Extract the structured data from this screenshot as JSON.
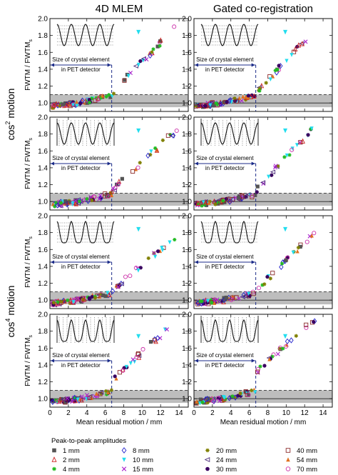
{
  "figure": {
    "column_titles": [
      "4D MLEM",
      "Gated co-registration"
    ],
    "row_labels": [
      {
        "base": "cos",
        "sup": "2",
        "word": "motion"
      },
      {
        "base": "cos",
        "sup": "4",
        "word": "motion"
      }
    ],
    "ylabel": {
      "main": "FWTM",
      "sep": " / ",
      "main2": "FWTM",
      "sub": "s"
    },
    "xlabel": "Mean residual motion / mm",
    "annotation": {
      "line1": "Size of crystal element",
      "line2": "in PET detector"
    },
    "xlim": [
      0,
      15
    ],
    "ylim": [
      0.9,
      2.0
    ],
    "xticks": [
      "0",
      "2",
      "4",
      "6",
      "8",
      "10",
      "12",
      "14"
    ],
    "yticks": [
      "1.0",
      "1.2",
      "1.4",
      "1.6",
      "1.8",
      "2.0"
    ],
    "legend_title": "Peak-to-peak amplitudes"
  },
  "chart_data": {
    "type": "scatter",
    "grid": false,
    "xlabel": "Mean residual motion / mm",
    "ylabel": "FWTM / FWTMs",
    "xlim": [
      0,
      15
    ],
    "ylim": [
      0.9,
      2.0
    ],
    "shaded_band": [
      0.95,
      1.1
    ],
    "reference_lines": {
      "y": [
        1.0,
        1.1
      ],
      "x_dashed": 6.7,
      "y_dashed": 1.45
    },
    "legend_position": "bottom",
    "series": [
      {
        "name": "1 mm",
        "marker": "square-filled",
        "color": "#555555"
      },
      {
        "name": "2 mm",
        "marker": "triangle-open",
        "color": "#cc2222"
      },
      {
        "name": "4 mm",
        "marker": "star",
        "color": "#22bb22"
      },
      {
        "name": "8 mm",
        "marker": "diamond-open",
        "color": "#2222cc"
      },
      {
        "name": "10 mm",
        "marker": "triangle-down",
        "color": "#22ddee"
      },
      {
        "name": "15 mm",
        "marker": "cross",
        "color": "#aa22cc"
      },
      {
        "name": "20 mm",
        "marker": "star",
        "color": "#808000"
      },
      {
        "name": "24 mm",
        "marker": "triangle-left",
        "color": "#4a2a7a"
      },
      {
        "name": "30 mm",
        "marker": "circle-filled",
        "color": "#3a0060"
      },
      {
        "name": "40 mm",
        "marker": "square-open",
        "color": "#8b2a2a"
      },
      {
        "name": "54 mm",
        "marker": "triangle-filled",
        "color": "#e07020"
      },
      {
        "name": "70 mm",
        "marker": "circle-open",
        "color": "#cc33aa"
      }
    ],
    "panels": [
      {
        "row": 1,
        "col": 1,
        "curve": {
          "x0": 6.7,
          "y0": 1.1,
          "x1": 13.5,
          "y1": 1.88
        }
      },
      {
        "row": 1,
        "col": 2,
        "curve": {
          "x0": 6.7,
          "y0": 1.1,
          "x1": 13.2,
          "y1": 1.88
        }
      },
      {
        "row": 2,
        "col": 1,
        "curve": {
          "x0": 6.7,
          "y0": 1.12,
          "x1": 13.8,
          "y1": 1.85
        }
      },
      {
        "row": 2,
        "col": 2,
        "curve": {
          "x0": 6.7,
          "y0": 1.12,
          "x1": 13.2,
          "y1": 1.9
        }
      },
      {
        "row": 3,
        "col": 1,
        "curve": {
          "x0": 6.7,
          "y0": 1.1,
          "x1": 13.8,
          "y1": 1.75
        }
      },
      {
        "row": 3,
        "col": 2,
        "curve": {
          "x0": 6.7,
          "y0": 1.1,
          "x1": 13.5,
          "y1": 1.83
        }
      },
      {
        "row": 4,
        "col": 1,
        "curve": {
          "x0": 6.7,
          "y0": 1.2,
          "x1": 13.0,
          "y1": 1.85
        }
      },
      {
        "row": 4,
        "col": 2,
        "curve": {
          "x0": 6.7,
          "y0": 1.3,
          "x1": 13.2,
          "y1": 1.95
        }
      }
    ]
  }
}
